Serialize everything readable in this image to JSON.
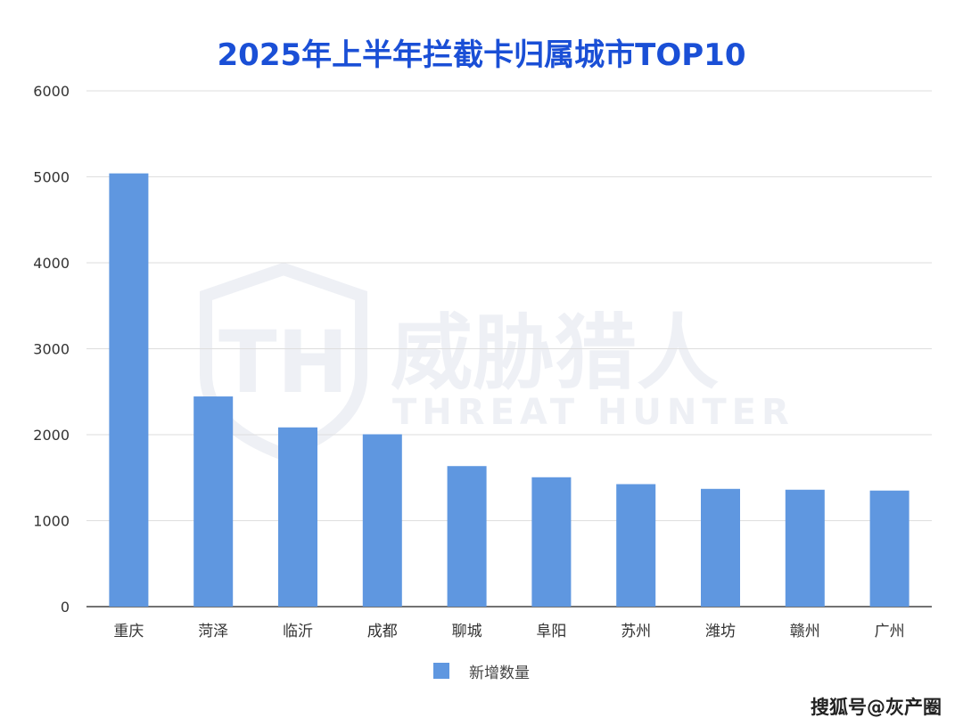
{
  "chart_data": {
    "type": "bar",
    "title": "2025年上半年拦截卡归属城市TOP10",
    "categories": [
      "重庆",
      "菏泽",
      "临沂",
      "成都",
      "聊城",
      "阜阳",
      "苏州",
      "潍坊",
      "赣州",
      "广州"
    ],
    "series": [
      {
        "name": "新增数量",
        "values": [
          5040,
          2445,
          2085,
          2005,
          1635,
          1505,
          1425,
          1370,
          1360,
          1350
        ],
        "color": "#5f97e0"
      }
    ],
    "ylim": [
      0,
      6000
    ],
    "yticks": [
      0,
      1000,
      2000,
      3000,
      4000,
      5000,
      6000
    ],
    "grid": true,
    "legend_position": "bottom-center",
    "xlabel": "",
    "ylabel": ""
  },
  "watermark": {
    "cn": "威胁猎人",
    "en": "THREAT HUNTER",
    "mark": "TH"
  },
  "source_credit": "搜狐号@灰产圈"
}
